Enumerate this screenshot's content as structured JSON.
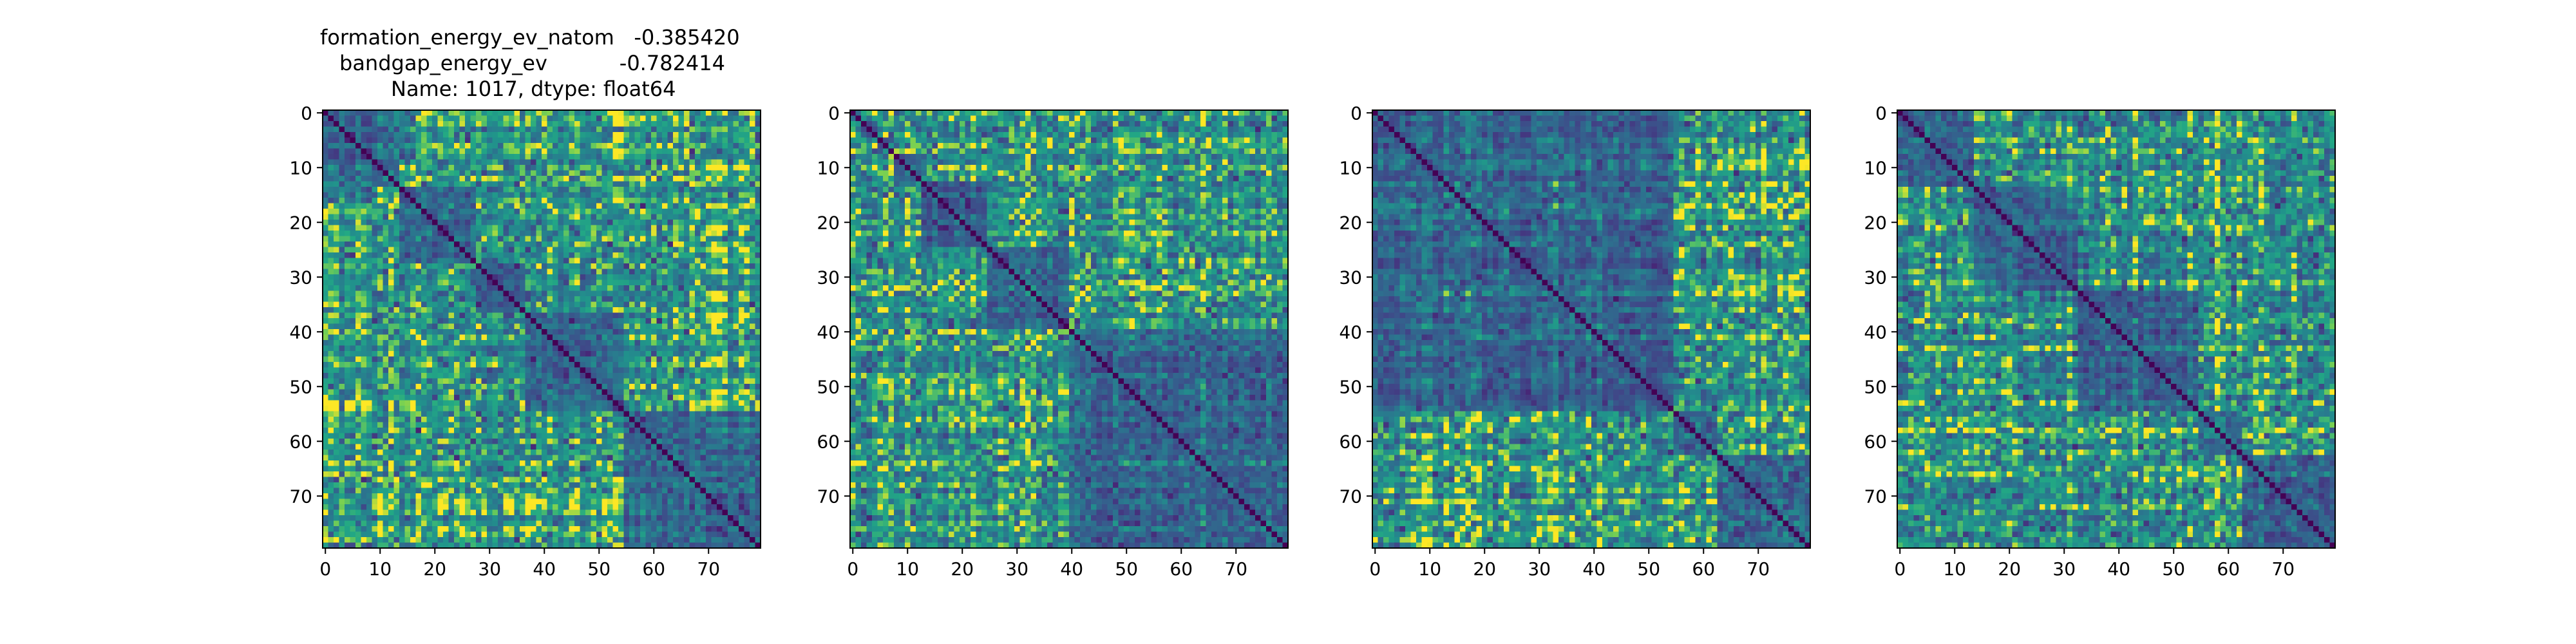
{
  "figure": {
    "title_lines": [
      "formation_energy_ev_natom   -0.385420",
      "bandgap_energy_ev           -0.782414",
      "Name: 1017, dtype: float64"
    ]
  },
  "chart_data": [
    {
      "type": "heatmap",
      "title": "formation_energy_ev_natom   -0.385420\nbandgap_energy_ev           -0.782414\nName: 1017, dtype: float64",
      "xlabel": "",
      "ylabel": "",
      "n": 80,
      "xticks": [
        0,
        10,
        20,
        30,
        40,
        50,
        60,
        70
      ],
      "yticks": [
        0,
        10,
        20,
        30,
        40,
        50,
        60,
        70
      ],
      "xlim": [
        -0.5,
        79.5
      ],
      "ylim": [
        79.5,
        -0.5
      ],
      "colormap": "viridis",
      "diagonal": "zero (dark purple)",
      "block_boundaries": [
        0,
        14,
        28,
        37,
        55,
        80
      ],
      "grid": false
    },
    {
      "type": "heatmap",
      "title": "",
      "xlabel": "",
      "ylabel": "",
      "n": 80,
      "xticks": [
        0,
        10,
        20,
        30,
        40,
        50,
        60,
        70
      ],
      "yticks": [
        0,
        10,
        20,
        30,
        40,
        50,
        60,
        70
      ],
      "xlim": [
        -0.5,
        79.5
      ],
      "ylim": [
        79.5,
        -0.5
      ],
      "colormap": "viridis",
      "diagonal": "zero (dark purple)",
      "block_boundaries": [
        0,
        2,
        5,
        8,
        13,
        25,
        40,
        80
      ],
      "grid": false
    },
    {
      "type": "heatmap",
      "title": "",
      "xlabel": "",
      "ylabel": "",
      "n": 80,
      "xticks": [
        0,
        10,
        20,
        30,
        40,
        50,
        60,
        70
      ],
      "yticks": [
        0,
        10,
        20,
        30,
        40,
        50,
        60,
        70
      ],
      "xlim": [
        -0.5,
        79.5
      ],
      "ylim": [
        79.5,
        -0.5
      ],
      "colormap": "viridis",
      "diagonal": "zero (dark purple)",
      "block_boundaries": [
        0,
        55,
        63,
        80
      ],
      "grid": false
    },
    {
      "type": "heatmap",
      "title": "",
      "xlabel": "",
      "ylabel": "",
      "n": 80,
      "xticks": [
        0,
        10,
        20,
        30,
        40,
        50,
        60,
        70
      ],
      "yticks": [
        0,
        10,
        20,
        30,
        40,
        50,
        60,
        70
      ],
      "xlim": [
        -0.5,
        79.5
      ],
      "ylim": [
        79.5,
        -0.5
      ],
      "colormap": "viridis",
      "diagonal": "zero (dark purple)",
      "block_boundaries": [
        0,
        14,
        33,
        55,
        63,
        80
      ],
      "grid": false
    }
  ]
}
